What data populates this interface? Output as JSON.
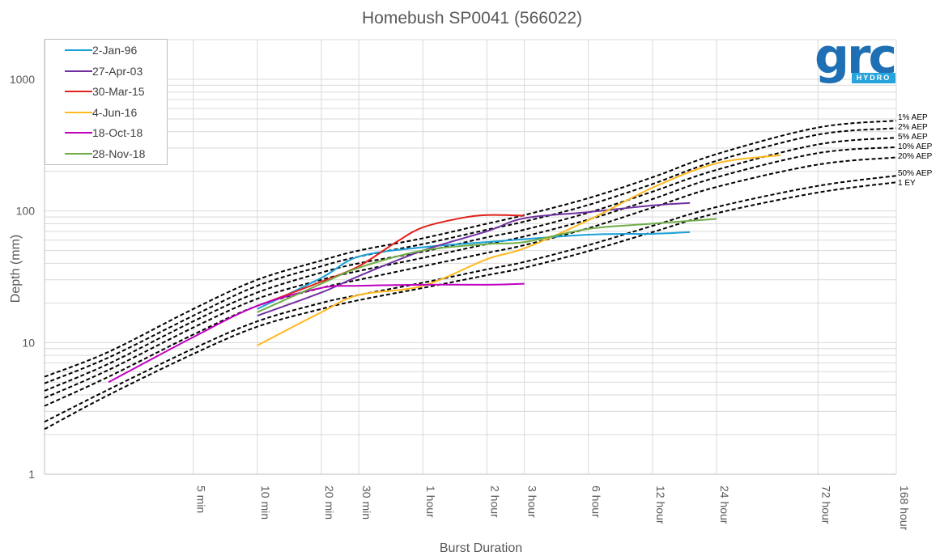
{
  "chart_data": {
    "type": "line",
    "title": "Homebush SP0041 (566022)",
    "xlabel": "Burst Duration",
    "ylabel": "Depth (mm)",
    "x_scale": "log",
    "y_scale": "log",
    "x_unit": "minutes",
    "xlim": [
      1,
      10080
    ],
    "ylim": [
      1,
      2000
    ],
    "y_ticks": [
      {
        "value": 1,
        "label": "1"
      },
      {
        "value": 10,
        "label": "10"
      },
      {
        "value": 100,
        "label": "100"
      },
      {
        "value": 1000,
        "label": "1000"
      }
    ],
    "x_ticks": [
      {
        "value": 5,
        "label": "5 min"
      },
      {
        "value": 10,
        "label": "10 min"
      },
      {
        "value": 20,
        "label": "20 min"
      },
      {
        "value": 30,
        "label": "30 min"
      },
      {
        "value": 60,
        "label": "1 hour"
      },
      {
        "value": 120,
        "label": "2 hour"
      },
      {
        "value": 180,
        "label": "3 hour"
      },
      {
        "value": 360,
        "label": "6 hour"
      },
      {
        "value": 720,
        "label": "12 hour"
      },
      {
        "value": 1440,
        "label": "24 hour"
      },
      {
        "value": 4320,
        "label": "72 hour"
      },
      {
        "value": 10080,
        "label": "168 hour"
      }
    ],
    "grid": "horizontal minor and vertical at ticks",
    "legend": "top-left",
    "series": [
      {
        "name": "2-Jan-96",
        "color": "#1aa0d8",
        "x": [
          10,
          20,
          30,
          60,
          120,
          360,
          720,
          1080
        ],
        "y": [
          18,
          31,
          45,
          53,
          58,
          66,
          67,
          69
        ]
      },
      {
        "name": "27-Apr-03",
        "color": "#7030a0",
        "x": [
          10,
          20,
          30,
          60,
          120,
          180,
          360,
          720,
          1080
        ],
        "y": [
          16,
          24,
          32,
          50,
          70,
          88,
          98,
          110,
          115
        ]
      },
      {
        "name": "30-Mar-15",
        "color": "#e0201b",
        "x": [
          10,
          20,
          30,
          45,
          60,
          90,
          120,
          180
        ],
        "y": [
          19,
          29,
          38,
          58,
          75,
          88,
          93,
          92
        ]
      },
      {
        "name": "4-Jun-16",
        "color": "#ffb81c",
        "x": [
          10,
          20,
          30,
          60,
          120,
          180,
          360,
          720,
          1440,
          2880
        ],
        "y": [
          9.5,
          17,
          23,
          27,
          43,
          52,
          85,
          150,
          230,
          265
        ]
      },
      {
        "name": "18-Oct-18",
        "color": "#c000c0",
        "x": [
          2,
          5,
          10,
          20,
          30,
          60,
          120,
          180
        ],
        "y": [
          5,
          11,
          19,
          26,
          27,
          27.5,
          27.5,
          28
        ]
      },
      {
        "name": "28-Nov-18",
        "color": "#70ad47",
        "x": [
          10,
          20,
          30,
          60,
          120,
          180,
          360,
          720,
          1440
        ],
        "y": [
          17,
          28,
          37,
          50,
          56,
          58,
          73,
          80,
          87
        ]
      }
    ],
    "design_curves": [
      {
        "label": "1% AEP",
        "x": [
          1,
          2,
          5,
          10,
          20,
          30,
          60,
          120,
          180,
          360,
          720,
          1440,
          4320,
          10080
        ],
        "y": [
          5.5,
          8.5,
          18,
          30,
          42,
          50,
          62,
          80,
          93,
          125,
          180,
          270,
          430,
          485
        ]
      },
      {
        "label": "2% AEP",
        "x": [
          1,
          2,
          5,
          10,
          20,
          30,
          60,
          120,
          180,
          360,
          720,
          1440,
          4320,
          10080
        ],
        "y": [
          4.9,
          7.7,
          16,
          27,
          38,
          45,
          56,
          72,
          83,
          111,
          160,
          240,
          380,
          425
        ]
      },
      {
        "label": "5% AEP",
        "x": [
          1,
          2,
          5,
          10,
          20,
          30,
          60,
          120,
          180,
          360,
          720,
          1440,
          4320,
          10080
        ],
        "y": [
          4.3,
          6.9,
          14.5,
          24,
          34,
          40,
          49,
          63,
          72,
          97,
          140,
          205,
          320,
          360
        ]
      },
      {
        "label": "10% AEP",
        "x": [
          1,
          2,
          5,
          10,
          20,
          30,
          60,
          120,
          180,
          360,
          720,
          1440,
          4320,
          10080
        ],
        "y": [
          3.8,
          6.2,
          13,
          21.5,
          30,
          35,
          44,
          56,
          64,
          86,
          123,
          180,
          275,
          305
        ]
      },
      {
        "label": "20% AEP",
        "x": [
          1,
          2,
          5,
          10,
          20,
          30,
          60,
          120,
          180,
          360,
          720,
          1440,
          4320,
          10080
        ],
        "y": [
          3.3,
          5.5,
          11.5,
          19,
          26,
          30,
          38,
          48,
          55,
          74,
          106,
          152,
          225,
          255
        ]
      },
      {
        "label": "50% AEP",
        "x": [
          1,
          2,
          5,
          10,
          20,
          30,
          60,
          120,
          180,
          360,
          720,
          1440,
          4320,
          10080
        ],
        "y": [
          2.5,
          4.4,
          9,
          14.5,
          20,
          23,
          28.5,
          36,
          41,
          55,
          77,
          107,
          155,
          185
        ]
      },
      {
        "label": "1 EY",
        "x": [
          1,
          2,
          5,
          10,
          20,
          30,
          60,
          120,
          180,
          360,
          720,
          1440,
          4320,
          10080
        ],
        "y": [
          2.2,
          4.0,
          8.2,
          13.2,
          18,
          21,
          26,
          32.5,
          37,
          49.5,
          69,
          96,
          138,
          165
        ]
      }
    ]
  },
  "logo": {
    "main": "grc",
    "sub": "HYDRO",
    "color": "#1f6fb4",
    "accent": "#29a3dc"
  }
}
